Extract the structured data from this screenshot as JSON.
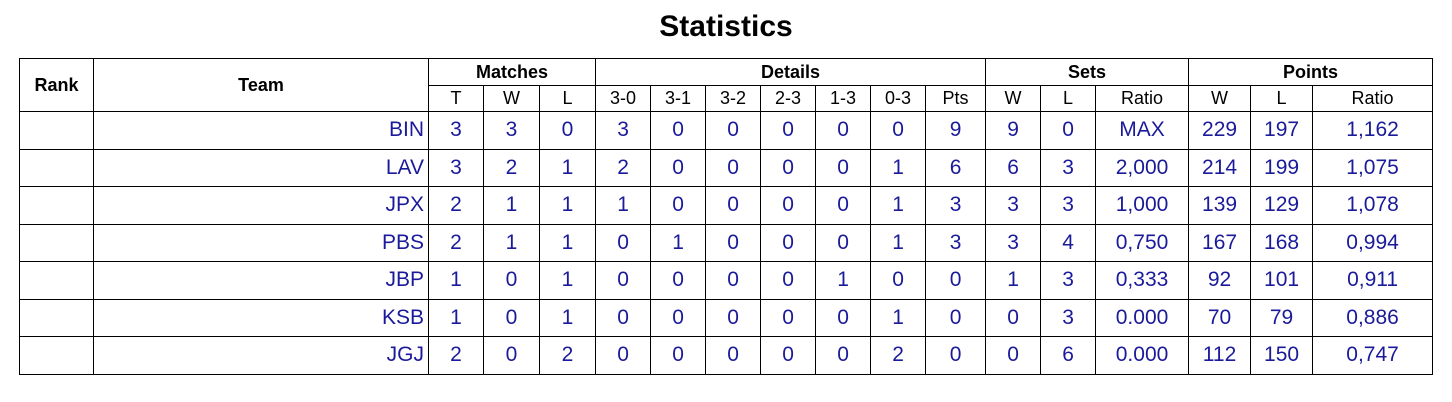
{
  "title": "Statistics",
  "table": {
    "header": {
      "rank": "Rank",
      "team": "Team",
      "groups": [
        {
          "label": "Matches",
          "columns": [
            "T",
            "W",
            "L"
          ]
        },
        {
          "label": "Details",
          "columns": [
            "3-0",
            "3-1",
            "3-2",
            "2-3",
            "1-3",
            "0-3",
            "Pts"
          ]
        },
        {
          "label": "Sets",
          "columns": [
            "W",
            "L",
            "Ratio"
          ]
        },
        {
          "label": "Points",
          "columns": [
            "W",
            "L",
            "Ratio"
          ]
        }
      ]
    },
    "rows": [
      [
        "BIN",
        3,
        3,
        0,
        3,
        0,
        0,
        0,
        0,
        0,
        9,
        9,
        0,
        "MAX",
        229,
        197,
        "1,162"
      ],
      [
        "LAV",
        3,
        2,
        1,
        2,
        0,
        0,
        0,
        0,
        1,
        6,
        6,
        3,
        "2,000",
        214,
        199,
        "1,075"
      ],
      [
        "JPX",
        2,
        1,
        1,
        1,
        0,
        0,
        0,
        0,
        1,
        3,
        3,
        3,
        "1,000",
        139,
        129,
        "1,078"
      ],
      [
        "PBS",
        2,
        1,
        1,
        0,
        1,
        0,
        0,
        0,
        1,
        3,
        3,
        4,
        "0,750",
        167,
        168,
        "0,994"
      ],
      [
        "JBP",
        1,
        0,
        1,
        0,
        0,
        0,
        0,
        1,
        0,
        0,
        1,
        3,
        "0,333",
        92,
        101,
        "0,911"
      ],
      [
        "KSB",
        1,
        0,
        1,
        0,
        0,
        0,
        0,
        0,
        1,
        0,
        0,
        3,
        "0.000",
        70,
        79,
        "0,886"
      ],
      [
        "JGJ",
        2,
        0,
        2,
        0,
        0,
        0,
        0,
        0,
        2,
        0,
        0,
        6,
        "0.000",
        112,
        150,
        "0,747"
      ]
    ]
  }
}
